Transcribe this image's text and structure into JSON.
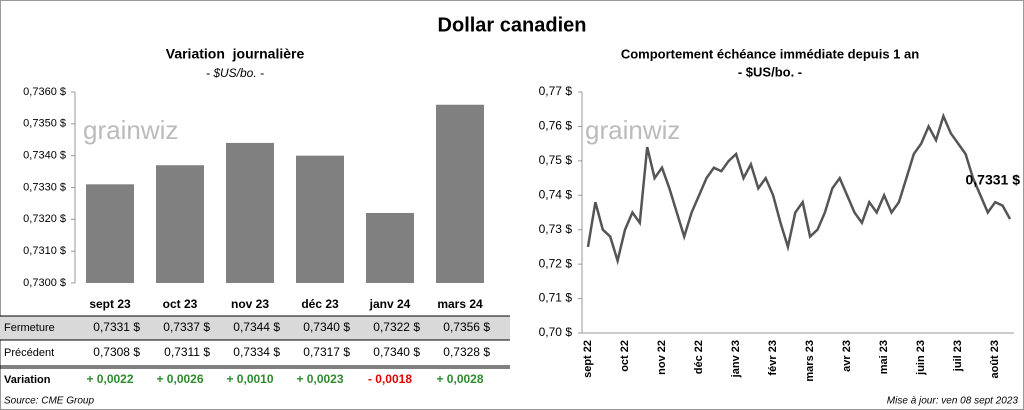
{
  "title": "Dollar canadien",
  "logo": "grainwiz",
  "chart_data": [
    {
      "type": "bar",
      "title": "Variation  journalière",
      "subtitle": "- $US/bo. -",
      "categories": [
        "sept 23",
        "oct 23",
        "nov 23",
        "déc 23",
        "janv 24",
        "mars 24"
      ],
      "values": [
        0.7331,
        0.7337,
        0.7344,
        0.734,
        0.7322,
        0.7356
      ],
      "value_labels": [
        "0,7331 $",
        "0,7337 $",
        "0,7344 $",
        "0,7340 $",
        "0,7322 $",
        "0,7356 $"
      ],
      "color": "#808080",
      "ylim": [
        0.73,
        0.736
      ],
      "yticks": [
        {
          "value": 0.73,
          "label": "0,7300 $"
        },
        {
          "value": 0.731,
          "label": "0,7310 $"
        },
        {
          "value": 0.732,
          "label": "0,7320 $"
        },
        {
          "value": 0.733,
          "label": "0,7330 $"
        },
        {
          "value": 0.734,
          "label": "0,7340 $"
        },
        {
          "value": 0.735,
          "label": "0,7350 $"
        },
        {
          "value": 0.736,
          "label": "0,7360 $"
        }
      ]
    },
    {
      "type": "line",
      "title": "Comportement échéance immédiate depuis 1 an",
      "subtitle": "- $US/bo. -",
      "categories": [
        "sept 22",
        null,
        null,
        null,
        null,
        "oct 22",
        null,
        null,
        null,
        null,
        "nov 22",
        null,
        null,
        null,
        null,
        "déc 22",
        null,
        null,
        null,
        null,
        "janv 23",
        null,
        null,
        null,
        null,
        "févr 23",
        null,
        null,
        null,
        null,
        "mars 23",
        null,
        null,
        null,
        null,
        "avr 23",
        null,
        null,
        null,
        null,
        "mai 23",
        null,
        null,
        null,
        null,
        "juin 23",
        null,
        null,
        null,
        null,
        "juil 23",
        null,
        null,
        null,
        null,
        "août 23",
        null,
        null
      ],
      "values": [
        0.725,
        0.738,
        0.73,
        0.728,
        0.721,
        0.73,
        0.735,
        0.732,
        0.754,
        0.745,
        0.748,
        0.742,
        0.735,
        0.728,
        0.735,
        0.74,
        0.745,
        0.748,
        0.747,
        0.75,
        0.752,
        0.745,
        0.749,
        0.742,
        0.745,
        0.74,
        0.732,
        0.725,
        0.735,
        0.738,
        0.728,
        0.73,
        0.735,
        0.742,
        0.745,
        0.74,
        0.735,
        0.732,
        0.738,
        0.735,
        0.74,
        0.735,
        0.738,
        0.745,
        0.752,
        0.755,
        0.76,
        0.756,
        0.763,
        0.758,
        0.755,
        0.752,
        0.745,
        0.74,
        0.735,
        0.738,
        0.737,
        0.7331
      ],
      "last_value_label": "0,7331 $",
      "color": "#555555",
      "ylim": [
        0.7,
        0.77
      ],
      "yticks": [
        {
          "value": 0.7,
          "label": "0,70 $"
        },
        {
          "value": 0.71,
          "label": "0,71 $"
        },
        {
          "value": 0.72,
          "label": "0,72 $"
        },
        {
          "value": 0.73,
          "label": "0,73 $"
        },
        {
          "value": 0.74,
          "label": "0,74 $"
        },
        {
          "value": 0.75,
          "label": "0,75 $"
        },
        {
          "value": 0.76,
          "label": "0,76 $"
        },
        {
          "value": 0.77,
          "label": "0,77 $"
        }
      ]
    }
  ],
  "table": {
    "rows": [
      {
        "label": "Fermeture"
      },
      {
        "label": "Précédent",
        "cells": [
          "0,7308 $",
          "0,7311 $",
          "0,7334 $",
          "0,7317 $",
          "0,7340 $",
          "0,7328 $"
        ]
      },
      {
        "label": "Variation",
        "cells": [
          "+ 0,0022",
          "+ 0,0026",
          "+ 0,0010",
          "+ 0,0023",
          "- 0,0018",
          "+ 0,0028"
        ],
        "colors": [
          "#2e8b2e",
          "#2e8b2e",
          "#2e8b2e",
          "#2e8b2e",
          "#e00000",
          "#2e8b2e"
        ]
      }
    ]
  },
  "source": "Source: CME Group",
  "updated": "Mise à jour: ven 08 sept 2023"
}
